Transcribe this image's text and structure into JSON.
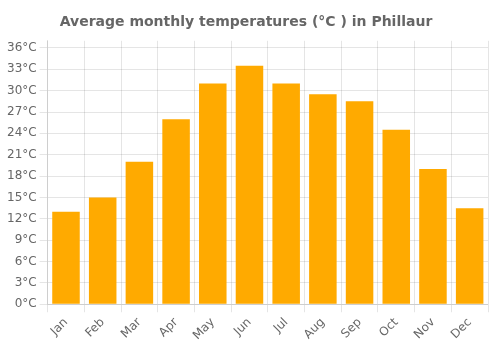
{
  "chart_data": {
    "type": "bar",
    "title": "Average monthly temperatures (°C ) in Phillaur",
    "categories": [
      "Jan",
      "Feb",
      "Mar",
      "Apr",
      "May",
      "Jun",
      "Jul",
      "Aug",
      "Sep",
      "Oct",
      "Nov",
      "Dec"
    ],
    "values": [
      13,
      15,
      20,
      26,
      31,
      33.5,
      31,
      29.5,
      28.5,
      24.5,
      19,
      13.5
    ],
    "color": "#FFAA00",
    "ylim": [
      0,
      37
    ],
    "yticks": [
      {
        "value": 0,
        "label": "0°C"
      },
      {
        "value": 3,
        "label": "3°C"
      },
      {
        "value": 6,
        "label": "6°C"
      },
      {
        "value": 9,
        "label": "9°C"
      },
      {
        "value": 12,
        "label": "12°C"
      },
      {
        "value": 15,
        "label": "15°C"
      },
      {
        "value": 18,
        "label": "18°C"
      },
      {
        "value": 21,
        "label": "21°C"
      },
      {
        "value": 24,
        "label": "24°C"
      },
      {
        "value": 27,
        "label": "27°C"
      },
      {
        "value": 30,
        "label": "30°C"
      },
      {
        "value": 33,
        "label": "33°C"
      },
      {
        "value": 36,
        "label": "36°C"
      }
    ],
    "grid": true
  }
}
